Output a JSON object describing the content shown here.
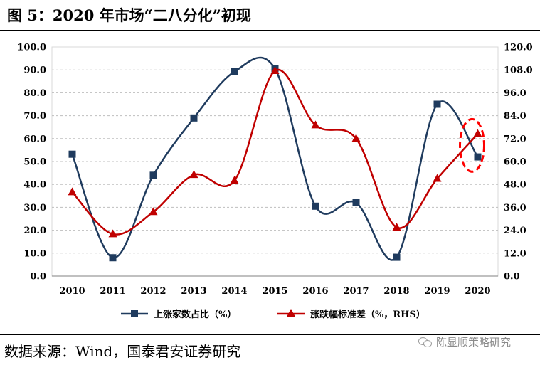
{
  "figure": {
    "title": "图 5：2020 年市场“二八分化”初现",
    "source": "数据来源：Wind，国泰君安证券研究",
    "watermark": "陈显顺策略研究",
    "watermark_icon": "wechat-icon"
  },
  "colors": {
    "series1": "#1F3B5E",
    "series2": "#C00000",
    "highlight": "#FF0000",
    "grid": "#BFBFBF",
    "plot_border": "#D9D9D9",
    "text": "#000000"
  },
  "chart_data": {
    "type": "line",
    "title": "",
    "categories": [
      "2010",
      "2011",
      "2012",
      "2013",
      "2014",
      "2015",
      "2016",
      "2017",
      "2018",
      "2019",
      "2020"
    ],
    "series": [
      {
        "name": "上涨家数占比（%）",
        "axis": "left",
        "marker": "square",
        "values": [
          53.2,
          8.0,
          44.0,
          69.0,
          89.2,
          90.5,
          30.5,
          32.0,
          8.2,
          75.0,
          52.0
        ]
      },
      {
        "name": "涨跌幅标准差（%，RHS）",
        "axis": "right",
        "marker": "triangle",
        "values": [
          44.0,
          22.0,
          33.6,
          53.0,
          50.0,
          107.5,
          79.0,
          72.0,
          25.5,
          51.0,
          74.5
        ]
      }
    ],
    "y_left": {
      "min": 0,
      "max": 100,
      "step": 10,
      "tick_labels": [
        "0.0",
        "10.0",
        "20.0",
        "30.0",
        "40.0",
        "50.0",
        "60.0",
        "70.0",
        "80.0",
        "90.0",
        "100.0"
      ]
    },
    "y_right": {
      "min": 0,
      "max": 120,
      "step": 12,
      "tick_labels": [
        "0.0",
        "12.0",
        "24.0",
        "36.0",
        "48.0",
        "60.0",
        "72.0",
        "84.0",
        "96.0",
        "108.0",
        "120.0"
      ]
    },
    "grid": "horizontal-dashed",
    "legend_position": "bottom",
    "annotation": "red dashed ellipse around 2020 points"
  }
}
